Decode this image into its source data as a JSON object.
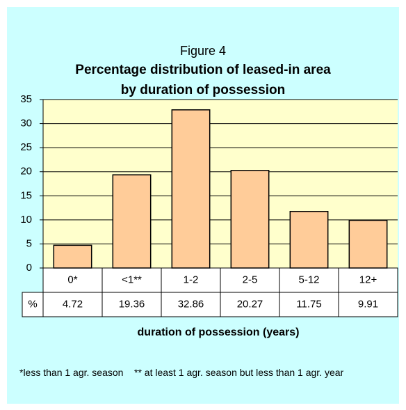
{
  "chart_data": {
    "type": "bar",
    "figure_label": "Figure 4",
    "title": "Percentage distribution of leased-in area by duration of possession",
    "categories": [
      "0*",
      "<1**",
      "1-2",
      "2-5",
      "5-12",
      "12+"
    ],
    "values": [
      4.72,
      19.36,
      32.86,
      20.27,
      11.75,
      9.91
    ],
    "table_row_label": "%",
    "color": "#ffcc99",
    "ylim": [
      0,
      35
    ],
    "yticks": [
      0,
      5,
      10,
      15,
      20,
      25,
      30,
      35
    ],
    "grid": true,
    "xlabel": "duration of possession (years)",
    "footnote": "*less than 1 agr. season    ** at least 1 agr. season but less than 1 agr. year"
  }
}
